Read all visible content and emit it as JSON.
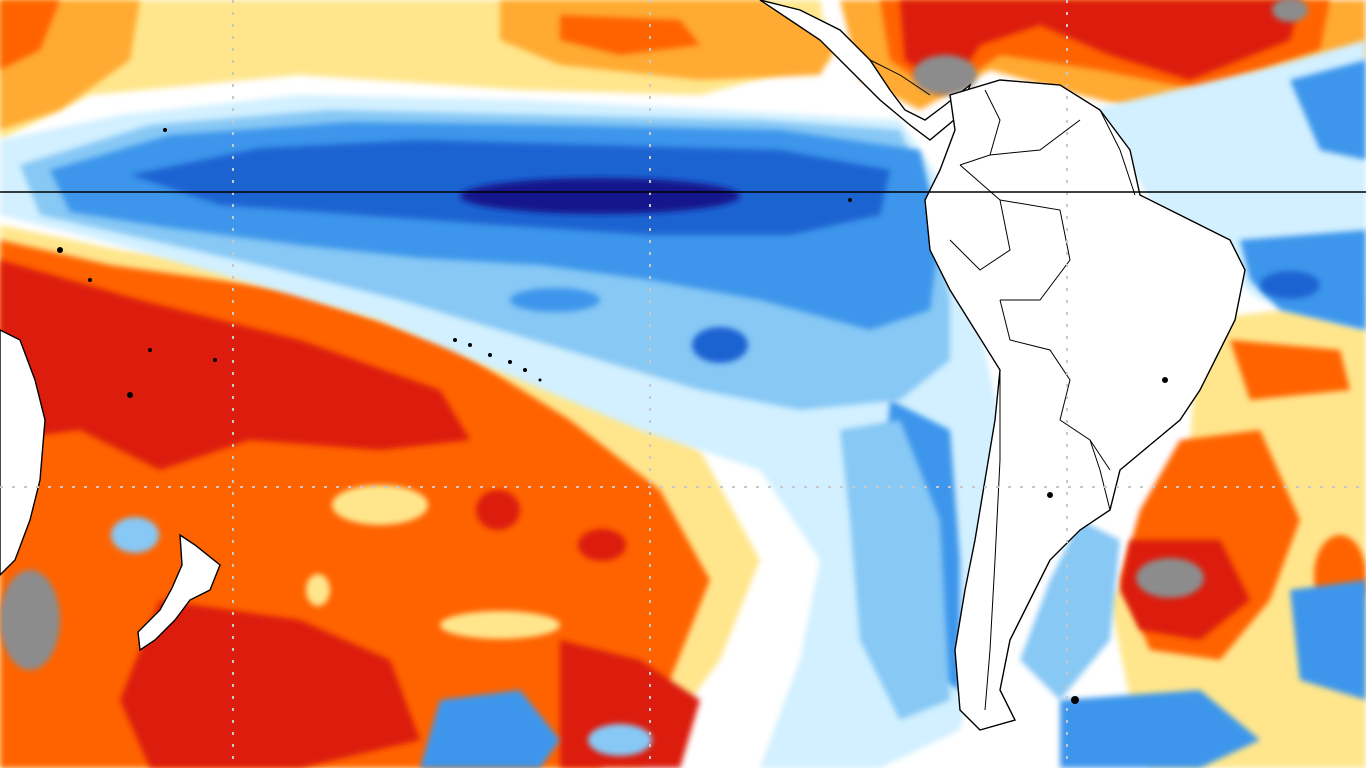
{
  "map": {
    "kind": "sea-surface-temperature-anomaly",
    "projection": "equirectangular",
    "has_text": false,
    "colors": {
      "strong_cold": "#14148c",
      "cold_3": "#1f64d2",
      "cold_2": "#3c96eb",
      "cold_1": "#87c8f5",
      "cold_0": "#d2f0ff",
      "neutral": "#ffffff",
      "warm_0": "#ffe68c",
      "warm_1": "#ffaa32",
      "warm_2": "#ff6400",
      "warm_3": "#dc1e0a",
      "extreme_warm": "#8c8c8c",
      "land": "#ffffff",
      "coastline": "#000000",
      "gridline": "#c8c8c8",
      "equator": "#000000"
    },
    "features": {
      "cold_tongue": "equatorial-pacific-cold-anomaly",
      "warm_pool_west": "southwest-pacific-warm-anomaly",
      "warm_north": "caribbean-warm-anomaly",
      "warm_south_atlantic": "south-atlantic-warm-anomaly"
    },
    "landmasses": [
      "south-america",
      "central-america",
      "australia",
      "new-zealand"
    ],
    "reference_lines": {
      "equator": true,
      "dashed_graticule": true
    }
  }
}
